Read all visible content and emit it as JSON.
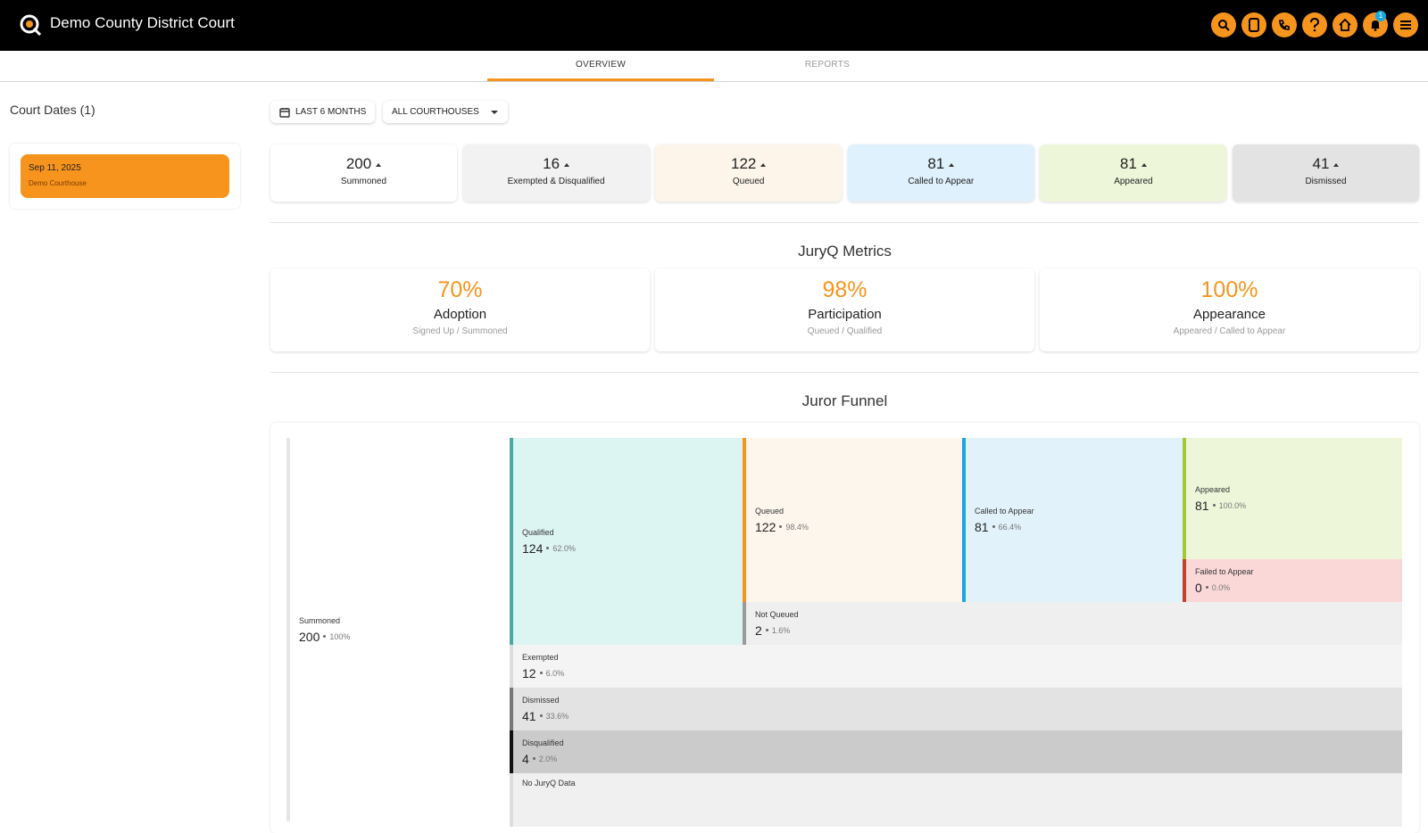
{
  "header": {
    "title": "Demo County District Court",
    "notifications": 1
  },
  "tabs": [
    "OVERVIEW",
    "REPORTS"
  ],
  "sidebar": {
    "title": "Court Dates (1)",
    "dates": [
      {
        "date": "Sep 11, 2025",
        "location": "Demo Courthouse"
      }
    ]
  },
  "filters": [
    "LAST 6 MONTHS",
    "ALL COURTHOUSES"
  ],
  "stats": [
    {
      "value": 200,
      "label": "Summoned"
    },
    {
      "value": 16,
      "label": "Exempted & Disqualified"
    },
    {
      "value": 122,
      "label": "Queued"
    },
    {
      "value": 81,
      "label": "Called to Appear"
    },
    {
      "value": 81,
      "label": "Appeared"
    },
    {
      "value": 41,
      "label": "Dismissed"
    }
  ],
  "metrics": {
    "title": "JuryQ Metrics",
    "items": [
      {
        "value": "70%",
        "label": "Adoption",
        "formula": "Signed Up / Summoned"
      },
      {
        "value": "98%",
        "label": "Participation",
        "formula": "Queued / Qualified"
      },
      {
        "value": "100%",
        "label": "Appearance",
        "formula": "Appeared / Called to Appear"
      }
    ]
  },
  "funnel": {
    "title": "Juror Funnel",
    "nodes": [
      {
        "label": "Summoned",
        "count": 200,
        "percent": "100%"
      },
      {
        "label": "Qualified",
        "count": 124,
        "percent": "62.0%"
      },
      {
        "label": "Queued",
        "count": 122,
        "percent": "98.4%"
      },
      {
        "label": "Called to Appear",
        "count": 81,
        "percent": "66.4%"
      },
      {
        "label": "Appeared",
        "count": 81,
        "percent": "100.0%"
      },
      {
        "label": "Failed to Appear",
        "count": 0,
        "percent": "0.0%"
      },
      {
        "label": "Not Queued",
        "count": 2,
        "percent": "1.6%"
      },
      {
        "label": "Exempted",
        "count": 12,
        "percent": "6.0%"
      },
      {
        "label": "Dismissed",
        "count": 41,
        "percent": "33.6%"
      },
      {
        "label": "Disqualified",
        "count": 4,
        "percent": "2.0%"
      },
      {
        "label": "No JuryQ Data"
      }
    ]
  }
}
